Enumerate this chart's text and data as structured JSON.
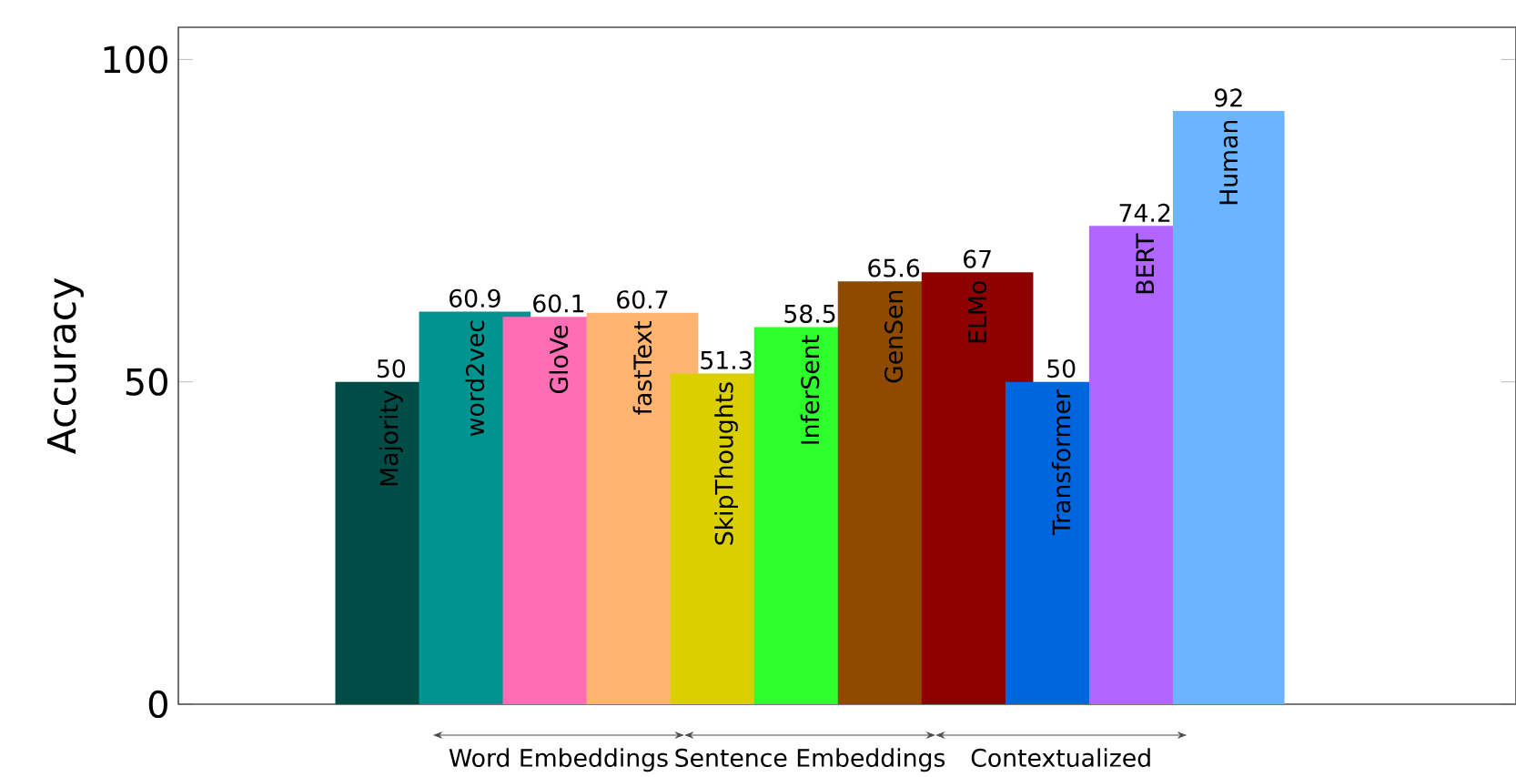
{
  "chart_data": {
    "type": "bar",
    "ylabel": "Accuracy",
    "categories": [
      "Majority",
      "word2vec",
      "GloVe",
      "fastText",
      "SkipThoughts",
      "InferSent",
      "GenSen",
      "ELMo",
      "Transformer",
      "BERT",
      "Human"
    ],
    "values": [
      50,
      60.9,
      60.1,
      60.7,
      51.3,
      58.5,
      65.6,
      67,
      50,
      74.2,
      92
    ],
    "colors": [
      "#004d48",
      "#009490",
      "#ff6eb4",
      "#ffb570",
      "#dccf00",
      "#2cff2c",
      "#8e4b00",
      "#8f0000",
      "#0066dd",
      "#b266ff",
      "#6cb4ff"
    ],
    "ylim": [
      0,
      105
    ],
    "yticks": [
      0,
      50,
      100
    ],
    "data_labels": true,
    "annotations": [
      "Word Embeddings",
      "Sentence Embeddings",
      "Contextualized"
    ]
  }
}
